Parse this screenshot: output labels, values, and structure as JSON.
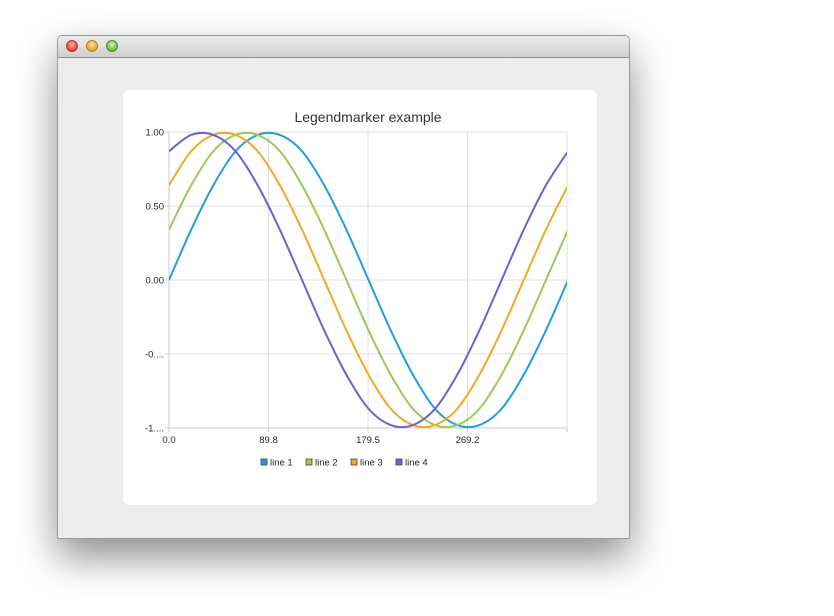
{
  "window": {
    "controls": [
      "close",
      "minimize",
      "maximize"
    ]
  },
  "chart_data": {
    "type": "line",
    "title": "Legendmarker example",
    "xlim": [
      0,
      359
    ],
    "ylim": [
      -1,
      1
    ],
    "x_ticks": [
      "0.0",
      "89.8",
      "179.5",
      "269.2"
    ],
    "x_tick_values": [
      0,
      89.75,
      179.5,
      269.25
    ],
    "y_ticks": [
      "1.00",
      "0.50",
      "0.00",
      "-0....",
      "-1...."
    ],
    "y_tick_values": [
      1,
      0.5,
      0,
      -0.5,
      -1
    ],
    "grid": true,
    "legend_placement": "bottom",
    "x": [
      0,
      20,
      40,
      60,
      80,
      100,
      120,
      140,
      160,
      180,
      200,
      220,
      240,
      260,
      280,
      300,
      320,
      340,
      360
    ],
    "series": [
      {
        "name": "line 1",
        "color": "#209fdf",
        "values": [
          0,
          0.34,
          0.64,
          0.87,
          0.98,
          0.98,
          0.87,
          0.64,
          0.34,
          0,
          -0.34,
          -0.64,
          -0.87,
          -0.98,
          -0.98,
          -0.87,
          -0.64,
          -0.34,
          0
        ]
      },
      {
        "name": "line 2",
        "color": "#99ca53",
        "values": [
          0.34,
          0.64,
          0.87,
          0.98,
          0.98,
          0.87,
          0.64,
          0.34,
          0,
          -0.34,
          -0.64,
          -0.87,
          -0.98,
          -0.98,
          -0.87,
          -0.64,
          -0.34,
          0,
          0.34
        ]
      },
      {
        "name": "line 3",
        "color": "#f6a625",
        "values": [
          0.64,
          0.87,
          0.98,
          0.98,
          0.87,
          0.64,
          0.34,
          0,
          -0.34,
          -0.64,
          -0.87,
          -0.98,
          -0.98,
          -0.87,
          -0.64,
          -0.34,
          0,
          0.34,
          0.64
        ]
      },
      {
        "name": "line 4",
        "color": "#6d5fd5",
        "values": [
          0.87,
          0.98,
          0.98,
          0.87,
          0.64,
          0.34,
          0,
          -0.34,
          -0.64,
          -0.87,
          -0.98,
          -0.98,
          -0.87,
          -0.64,
          -0.34,
          0,
          0.34,
          0.64,
          0.87
        ]
      }
    ]
  }
}
